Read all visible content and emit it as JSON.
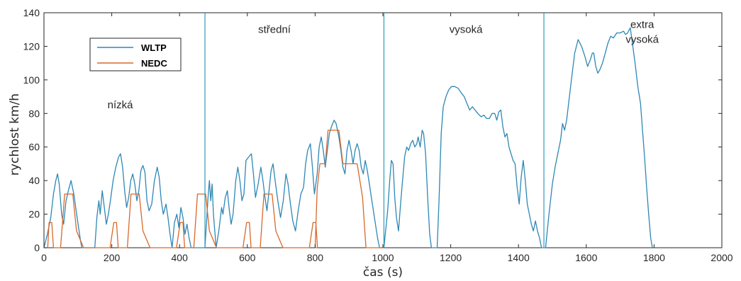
{
  "chart_data": {
    "type": "line",
    "xlabel": "čas (s)",
    "ylabel": "rychlost km/h",
    "xlim": [
      0,
      2000
    ],
    "ylim": [
      0,
      140
    ],
    "xticks": [
      0,
      200,
      400,
      600,
      800,
      1000,
      1200,
      1400,
      1600,
      1800,
      2000
    ],
    "yticks": [
      0,
      20,
      40,
      60,
      80,
      100,
      120,
      140
    ],
    "grid": false,
    "legend_position": "top-left",
    "dividers": [
      475,
      1003,
      1475
    ],
    "region_labels": [
      {
        "text": "nízká",
        "x": 225,
        "y": 83
      },
      {
        "text": "střední",
        "x": 680,
        "y": 128
      },
      {
        "text": "vysoká",
        "x": 1245,
        "y": 128
      },
      {
        "text": "extra",
        "x": 1765,
        "y": 131
      },
      {
        "text": "vysoká",
        "x": 1765,
        "y": 122
      }
    ],
    "series": [
      {
        "name": "WLTP",
        "color": "#2E87B5",
        "points": [
          [
            0,
            0
          ],
          [
            10,
            8
          ],
          [
            20,
            18
          ],
          [
            28,
            32
          ],
          [
            35,
            40
          ],
          [
            40,
            44
          ],
          [
            45,
            38
          ],
          [
            52,
            20
          ],
          [
            58,
            14
          ],
          [
            65,
            28
          ],
          [
            72,
            34
          ],
          [
            80,
            40
          ],
          [
            88,
            32
          ],
          [
            95,
            22
          ],
          [
            102,
            12
          ],
          [
            108,
            4
          ],
          [
            112,
            0
          ],
          [
            150,
            0
          ],
          [
            156,
            18
          ],
          [
            162,
            28
          ],
          [
            166,
            20
          ],
          [
            172,
            34
          ],
          [
            178,
            24
          ],
          [
            184,
            14
          ],
          [
            190,
            20
          ],
          [
            196,
            28
          ],
          [
            204,
            40
          ],
          [
            212,
            48
          ],
          [
            220,
            54
          ],
          [
            226,
            56
          ],
          [
            232,
            48
          ],
          [
            238,
            34
          ],
          [
            244,
            24
          ],
          [
            250,
            30
          ],
          [
            256,
            40
          ],
          [
            262,
            44
          ],
          [
            268,
            38
          ],
          [
            274,
            28
          ],
          [
            280,
            34
          ],
          [
            286,
            46
          ],
          [
            292,
            49
          ],
          [
            298,
            45
          ],
          [
            304,
            28
          ],
          [
            310,
            22
          ],
          [
            318,
            26
          ],
          [
            326,
            40
          ],
          [
            334,
            48
          ],
          [
            340,
            42
          ],
          [
            346,
            28
          ],
          [
            352,
            20
          ],
          [
            360,
            26
          ],
          [
            366,
            18
          ],
          [
            372,
            8
          ],
          [
            378,
            0
          ],
          [
            385,
            15
          ],
          [
            392,
            20
          ],
          [
            398,
            12
          ],
          [
            404,
            24
          ],
          [
            410,
            18
          ],
          [
            416,
            8
          ],
          [
            422,
            14
          ],
          [
            428,
            6
          ],
          [
            434,
            0
          ],
          [
            475,
            0
          ],
          [
            484,
            30
          ],
          [
            488,
            40
          ],
          [
            492,
            28
          ],
          [
            496,
            38
          ],
          [
            500,
            20
          ],
          [
            508,
            0
          ],
          [
            516,
            10
          ],
          [
            524,
            24
          ],
          [
            528,
            20
          ],
          [
            535,
            30
          ],
          [
            541,
            34
          ],
          [
            546,
            24
          ],
          [
            552,
            14
          ],
          [
            558,
            20
          ],
          [
            566,
            40
          ],
          [
            572,
            48
          ],
          [
            578,
            40
          ],
          [
            584,
            28
          ],
          [
            590,
            32
          ],
          [
            596,
            52
          ],
          [
            604,
            54
          ],
          [
            612,
            56
          ],
          [
            618,
            44
          ],
          [
            624,
            30
          ],
          [
            632,
            38
          ],
          [
            640,
            48
          ],
          [
            646,
            40
          ],
          [
            652,
            30
          ],
          [
            658,
            22
          ],
          [
            664,
            34
          ],
          [
            670,
            46
          ],
          [
            676,
            50
          ],
          [
            682,
            40
          ],
          [
            690,
            28
          ],
          [
            698,
            18
          ],
          [
            706,
            28
          ],
          [
            714,
            44
          ],
          [
            720,
            38
          ],
          [
            726,
            28
          ],
          [
            734,
            16
          ],
          [
            742,
            10
          ],
          [
            750,
            22
          ],
          [
            758,
            32
          ],
          [
            766,
            36
          ],
          [
            772,
            50
          ],
          [
            778,
            58
          ],
          [
            786,
            62
          ],
          [
            792,
            48
          ],
          [
            798,
            32
          ],
          [
            806,
            44
          ],
          [
            812,
            60
          ],
          [
            818,
            66
          ],
          [
            824,
            58
          ],
          [
            830,
            48
          ],
          [
            836,
            58
          ],
          [
            842,
            68
          ],
          [
            848,
            72
          ],
          [
            856,
            76
          ],
          [
            862,
            74
          ],
          [
            870,
            66
          ],
          [
            876,
            58
          ],
          [
            882,
            48
          ],
          [
            888,
            44
          ],
          [
            894,
            58
          ],
          [
            900,
            64
          ],
          [
            906,
            58
          ],
          [
            912,
            50
          ],
          [
            918,
            58
          ],
          [
            924,
            62
          ],
          [
            930,
            58
          ],
          [
            936,
            48
          ],
          [
            942,
            44
          ],
          [
            948,
            52
          ],
          [
            954,
            46
          ],
          [
            960,
            38
          ],
          [
            966,
            30
          ],
          [
            972,
            22
          ],
          [
            978,
            14
          ],
          [
            984,
            6
          ],
          [
            990,
            0
          ],
          [
            1003,
            0
          ],
          [
            1014,
            22
          ],
          [
            1020,
            40
          ],
          [
            1025,
            52
          ],
          [
            1030,
            50
          ],
          [
            1035,
            30
          ],
          [
            1040,
            18
          ],
          [
            1046,
            10
          ],
          [
            1052,
            26
          ],
          [
            1058,
            40
          ],
          [
            1064,
            54
          ],
          [
            1070,
            60
          ],
          [
            1076,
            58
          ],
          [
            1082,
            62
          ],
          [
            1088,
            64
          ],
          [
            1094,
            60
          ],
          [
            1100,
            62
          ],
          [
            1104,
            66
          ],
          [
            1110,
            60
          ],
          [
            1116,
            70
          ],
          [
            1120,
            68
          ],
          [
            1126,
            56
          ],
          [
            1132,
            30
          ],
          [
            1138,
            8
          ],
          [
            1143,
            0
          ],
          [
            1160,
            0
          ],
          [
            1166,
            30
          ],
          [
            1172,
            68
          ],
          [
            1178,
            84
          ],
          [
            1186,
            90
          ],
          [
            1194,
            94
          ],
          [
            1202,
            96
          ],
          [
            1212,
            96
          ],
          [
            1222,
            95
          ],
          [
            1232,
            92
          ],
          [
            1240,
            90
          ],
          [
            1248,
            86
          ],
          [
            1256,
            82
          ],
          [
            1264,
            84
          ],
          [
            1272,
            82
          ],
          [
            1280,
            80
          ],
          [
            1290,
            78
          ],
          [
            1298,
            79
          ],
          [
            1306,
            77
          ],
          [
            1314,
            77
          ],
          [
            1322,
            80
          ],
          [
            1330,
            80
          ],
          [
            1336,
            76
          ],
          [
            1342,
            81
          ],
          [
            1348,
            82
          ],
          [
            1354,
            72
          ],
          [
            1360,
            66
          ],
          [
            1366,
            68
          ],
          [
            1372,
            60
          ],
          [
            1378,
            56
          ],
          [
            1384,
            52
          ],
          [
            1390,
            50
          ],
          [
            1396,
            36
          ],
          [
            1402,
            26
          ],
          [
            1408,
            42
          ],
          [
            1414,
            52
          ],
          [
            1420,
            40
          ],
          [
            1426,
            26
          ],
          [
            1432,
            20
          ],
          [
            1438,
            14
          ],
          [
            1444,
            10
          ],
          [
            1450,
            16
          ],
          [
            1456,
            10
          ],
          [
            1462,
            6
          ],
          [
            1468,
            0
          ],
          [
            1480,
            0
          ],
          [
            1490,
            20
          ],
          [
            1500,
            38
          ],
          [
            1508,
            48
          ],
          [
            1516,
            56
          ],
          [
            1524,
            64
          ],
          [
            1530,
            74
          ],
          [
            1536,
            70
          ],
          [
            1542,
            76
          ],
          [
            1548,
            86
          ],
          [
            1556,
            100
          ],
          [
            1566,
            116
          ],
          [
            1576,
            124
          ],
          [
            1586,
            120
          ],
          [
            1596,
            114
          ],
          [
            1604,
            108
          ],
          [
            1612,
            112
          ],
          [
            1618,
            116
          ],
          [
            1622,
            116
          ],
          [
            1628,
            108
          ],
          [
            1634,
            104
          ],
          [
            1640,
            106
          ],
          [
            1648,
            110
          ],
          [
            1656,
            116
          ],
          [
            1664,
            122
          ],
          [
            1672,
            126
          ],
          [
            1680,
            125
          ],
          [
            1690,
            128
          ],
          [
            1700,
            128
          ],
          [
            1710,
            129
          ],
          [
            1716,
            127
          ],
          [
            1722,
            128
          ],
          [
            1730,
            131
          ],
          [
            1736,
            122
          ],
          [
            1744,
            110
          ],
          [
            1752,
            96
          ],
          [
            1760,
            86
          ],
          [
            1766,
            70
          ],
          [
            1772,
            54
          ],
          [
            1778,
            36
          ],
          [
            1784,
            20
          ],
          [
            1790,
            6
          ],
          [
            1795,
            0
          ]
        ]
      },
      {
        "name": "NEDC",
        "color": "#D9682B",
        "points": [
          [
            0,
            0
          ],
          [
            11,
            0
          ],
          [
            15,
            15
          ],
          [
            23,
            15
          ],
          [
            28,
            0
          ],
          [
            49,
            0
          ],
          [
            61,
            32
          ],
          [
            85,
            32
          ],
          [
            96,
            10
          ],
          [
            117,
            0
          ],
          [
            195,
            0
          ],
          [
            206,
            15
          ],
          [
            214,
            15
          ],
          [
            219,
            0
          ],
          [
            246,
            0
          ],
          [
            257,
            32
          ],
          [
            281,
            32
          ],
          [
            292,
            10
          ],
          [
            313,
            0
          ],
          [
            391,
            0
          ],
          [
            402,
            15
          ],
          [
            410,
            15
          ],
          [
            415,
            0
          ],
          [
            442,
            0
          ],
          [
            453,
            32
          ],
          [
            477,
            32
          ],
          [
            488,
            10
          ],
          [
            509,
            0
          ],
          [
            587,
            0
          ],
          [
            598,
            15
          ],
          [
            606,
            15
          ],
          [
            611,
            0
          ],
          [
            638,
            0
          ],
          [
            649,
            32
          ],
          [
            673,
            32
          ],
          [
            684,
            10
          ],
          [
            705,
            0
          ],
          [
            783,
            0
          ],
          [
            794,
            15
          ],
          [
            802,
            15
          ],
          [
            807,
            0
          ],
          [
            800,
            0
          ],
          [
            806,
            35
          ],
          [
            814,
            50
          ],
          [
            830,
            50
          ],
          [
            838,
            70
          ],
          [
            870,
            70
          ],
          [
            882,
            50
          ],
          [
            924,
            50
          ],
          [
            940,
            30
          ],
          [
            950,
            0
          ],
          [
            1000,
            0
          ]
        ]
      }
    ]
  },
  "legend": {
    "wltp": "WLTP",
    "nedc": "NEDC"
  },
  "colors": {
    "wltp": "#2E87B5",
    "nedc": "#D9682B",
    "divider": "#2E9BC0"
  }
}
